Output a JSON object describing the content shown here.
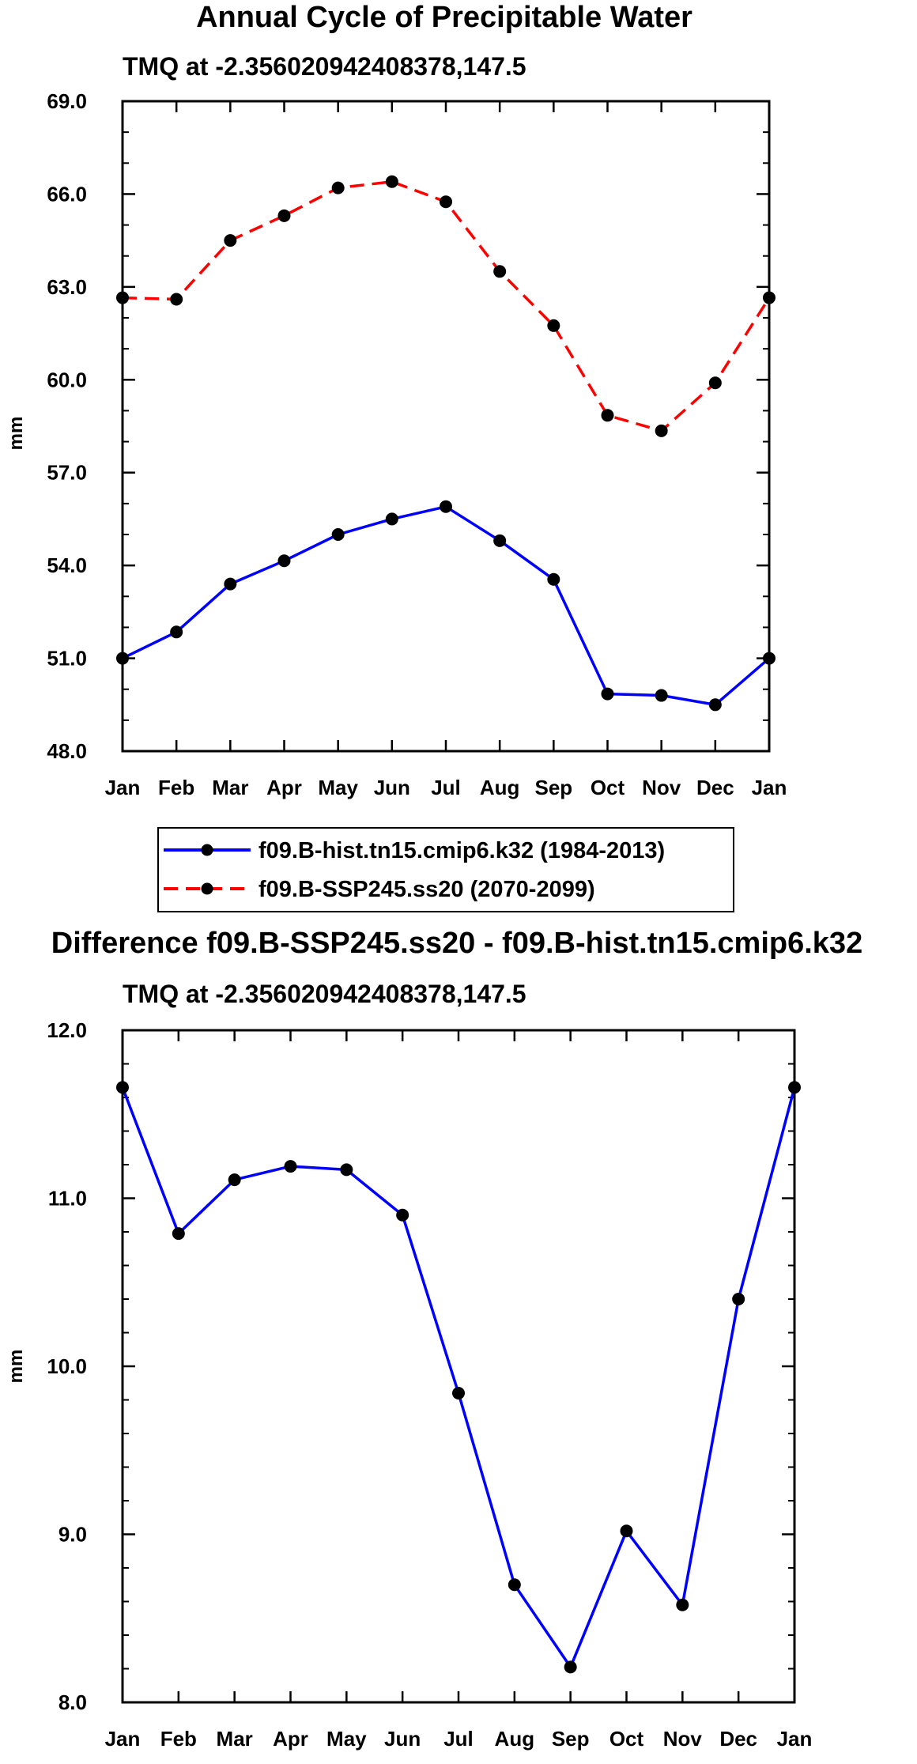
{
  "chart_data": [
    {
      "type": "line",
      "title": "Annual Cycle of Precipitable Water",
      "subtitle": "TMQ at -2.356020942408378,147.5",
      "xlabel": "",
      "ylabel": "mm",
      "categories": [
        "Jan",
        "Feb",
        "Mar",
        "Apr",
        "May",
        "Jun",
        "Jul",
        "Aug",
        "Sep",
        "Oct",
        "Nov",
        "Dec",
        "Jan"
      ],
      "ylim": [
        48.0,
        69.0
      ],
      "yticks": [
        "48.0",
        "51.0",
        "54.0",
        "57.0",
        "60.0",
        "63.0",
        "66.0",
        "69.0"
      ],
      "series": [
        {
          "name": "f09.B-hist.tn15.cmip6.k32 (1984-2013)",
          "color": "#0000ff",
          "dash": "solid",
          "values": [
            51.0,
            51.85,
            53.4,
            54.15,
            55.0,
            55.5,
            55.9,
            54.8,
            53.55,
            49.85,
            49.8,
            49.5,
            51.0
          ]
        },
        {
          "name": "f09.B-SSP245.ss20 (2070-2099)",
          "color": "#ff0000",
          "dash": "dashed",
          "values": [
            62.65,
            62.6,
            64.5,
            65.3,
            66.2,
            66.4,
            65.75,
            63.5,
            61.75,
            58.85,
            58.35,
            59.9,
            62.65
          ]
        }
      ]
    },
    {
      "type": "line",
      "title": "Difference f09.B-SSP245.ss20 - f09.B-hist.tn15.cmip6.k32",
      "subtitle": "TMQ at -2.356020942408378,147.5",
      "xlabel": "",
      "ylabel": "mm",
      "categories": [
        "Jan",
        "Feb",
        "Mar",
        "Apr",
        "May",
        "Jun",
        "Jul",
        "Aug",
        "Sep",
        "Oct",
        "Nov",
        "Dec",
        "Jan"
      ],
      "ylim": [
        8.0,
        12.0
      ],
      "yticks": [
        "8.0",
        "9.0",
        "10.0",
        "11.0",
        "12.0"
      ],
      "series": [
        {
          "name": "difference",
          "color": "#0000ff",
          "dash": "solid",
          "values": [
            11.66,
            10.79,
            11.11,
            11.19,
            11.17,
            10.9,
            9.84,
            8.7,
            8.21,
            9.02,
            8.58,
            10.4,
            11.66
          ]
        }
      ]
    }
  ]
}
